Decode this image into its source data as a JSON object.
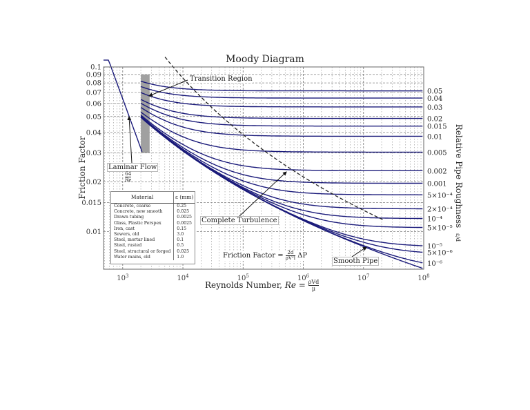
{
  "chart_data": {
    "type": "line",
    "title": "Moody Diagram",
    "xlabel": "Reynolds Number, Re = ρVd/μ",
    "ylabel": "Friction Factor",
    "y2label": "Relative Pipe Roughness ε/d",
    "xscale": "log",
    "yscale": "log",
    "xlim": [
      480,
      100000000
    ],
    "ylim": [
      0.0059,
      0.1
    ],
    "grid": true,
    "x_ticks": [
      "10^3",
      "10^4",
      "10^5",
      "10^6",
      "10^7",
      "10^8"
    ],
    "y_ticks": [
      "0.1",
      "0.09",
      "0.08",
      "0.07",
      "0.06",
      "0.05",
      "0.04",
      "0.03",
      "0.02",
      "0.015",
      "0.01"
    ],
    "series": [
      {
        "name": "Laminar Flow (64/Re)",
        "type": "laminar",
        "re_range": [
          480,
          2100
        ]
      },
      {
        "name": "ε/d = 0.05",
        "roughness": 0.05,
        "label": "0.05"
      },
      {
        "name": "ε/d = 0.04",
        "roughness": 0.04,
        "label": "0.04"
      },
      {
        "name": "ε/d = 0.03",
        "roughness": 0.03,
        "label": "0.03"
      },
      {
        "name": "ε/d = 0.02",
        "roughness": 0.02,
        "label": "0.02"
      },
      {
        "name": "ε/d = 0.015",
        "roughness": 0.015,
        "label": "0.015"
      },
      {
        "name": "ε/d = 0.01",
        "roughness": 0.01,
        "label": "0.01"
      },
      {
        "name": "ε/d = 0.005",
        "roughness": 0.005,
        "label": "0.005"
      },
      {
        "name": "ε/d = 0.002",
        "roughness": 0.002,
        "label": "0.002"
      },
      {
        "name": "ε/d = 0.001",
        "roughness": 0.001,
        "label": "0.001"
      },
      {
        "name": "ε/d = 5e-4",
        "roughness": 0.0005,
        "label": "5×10⁻⁴"
      },
      {
        "name": "ε/d = 2e-4",
        "roughness": 0.0002,
        "label": "2×10⁻⁴"
      },
      {
        "name": "ε/d = 1e-4",
        "roughness": 0.0001,
        "label": "10⁻⁴"
      },
      {
        "name": "ε/d = 5e-5",
        "roughness": 5e-05,
        "label": "5×10⁻⁵"
      },
      {
        "name": "ε/d = 1e-5",
        "roughness": 1e-05,
        "label": "10⁻⁵"
      },
      {
        "name": "ε/d = 5e-6",
        "roughness": 5e-06,
        "label": "5×10⁻⁶"
      },
      {
        "name": "ε/d = 1e-6",
        "roughness": 1e-06,
        "label": "10⁻⁶"
      },
      {
        "name": "Smooth Pipe",
        "roughness": 0,
        "label": ""
      }
    ],
    "transition_region": {
      "re_range": [
        2000,
        2800
      ],
      "f_range": [
        0.03,
        0.09
      ]
    },
    "complete_turbulence_line": "dashed",
    "annotations": [
      "Transition Region",
      "Laminar Flow",
      "64/Re",
      "Complete Turbulence",
      "Smooth Pipe",
      "Friction Factor = (2d / ρV²l) ΔP"
    ]
  },
  "labels": {
    "title": "Moody Diagram",
    "ylabel": "Friction Factor",
    "y2label": "Relative Pipe Roughness",
    "y2label_frac": "ε/d",
    "xlabel_text": "Reynolds Number, ",
    "xlabel_re": "Re",
    "xlabel_num": "ρVd",
    "xlabel_den": "μ",
    "transition": "Transition Region",
    "laminar": "Laminar Flow",
    "laminar_num": "64",
    "laminar_den": "Re",
    "complete": "Complete Turbulence",
    "smooth": "Smooth Pipe",
    "ff_text": "Friction Factor = ",
    "ff_num": "2d",
    "ff_den": "ρV²l",
    "ff_tail": "ΔP"
  },
  "materials_table": {
    "header_material": "Material",
    "header_eps": "ε (mm)",
    "rows": [
      {
        "material": "Concrete, coarse",
        "eps": "0.25"
      },
      {
        "material": "Concrete, new smooth",
        "eps": "0.025"
      },
      {
        "material": "Drawn tubing",
        "eps": "0.0025"
      },
      {
        "material": "Glass, Plastic Perspex",
        "eps": "0.0025"
      },
      {
        "material": "Iron, cast",
        "eps": "0.15"
      },
      {
        "material": "Sewers, old",
        "eps": "3.0"
      },
      {
        "material": "Steel, mortar lined",
        "eps": "0.1"
      },
      {
        "material": "Steel, rusted",
        "eps": "0.5"
      },
      {
        "material": "Steel, structural or forged",
        "eps": "0.025"
      },
      {
        "material": "Water mains, old",
        "eps": "1.0"
      }
    ]
  },
  "colors": {
    "curve": "#1a1a7a",
    "grid": "#666666",
    "transition": "#a0a0a0",
    "axis": "#555555"
  }
}
